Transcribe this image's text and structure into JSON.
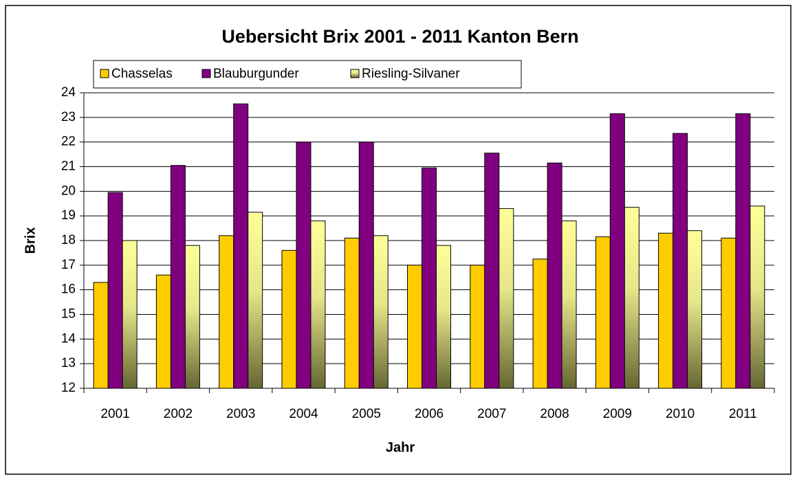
{
  "chart_data": {
    "type": "bar",
    "title": "Uebersicht Brix 2001 - 2011  Kanton Bern",
    "x_label": "Jahr",
    "y_label": "Brix",
    "categories": [
      "2001",
      "2002",
      "2003",
      "2004",
      "2005",
      "2006",
      "2007",
      "2008",
      "2009",
      "2010",
      "2011"
    ],
    "series": [
      {
        "name": "Chasselas",
        "color": "#ffcc00",
        "values": [
          16.3,
          16.6,
          18.2,
          17.6,
          18.1,
          17.0,
          17.0,
          17.25,
          18.15,
          18.3,
          18.1
        ]
      },
      {
        "name": "Blauburgunder",
        "color": "#800080",
        "values": [
          19.95,
          21.05,
          23.55,
          22.0,
          22.0,
          20.95,
          21.55,
          21.15,
          23.15,
          22.35,
          23.15
        ]
      },
      {
        "name": "Riesling-Silvaner",
        "color": "#ffff99",
        "values": [
          18.0,
          17.8,
          19.15,
          18.8,
          18.2,
          17.8,
          19.3,
          18.8,
          19.35,
          18.4,
          19.4
        ]
      }
    ],
    "ylim": [
      12,
      24
    ],
    "yticks": [
      12,
      13,
      14,
      15,
      16,
      17,
      18,
      19,
      20,
      21,
      22,
      23,
      24
    ],
    "grid": true
  }
}
